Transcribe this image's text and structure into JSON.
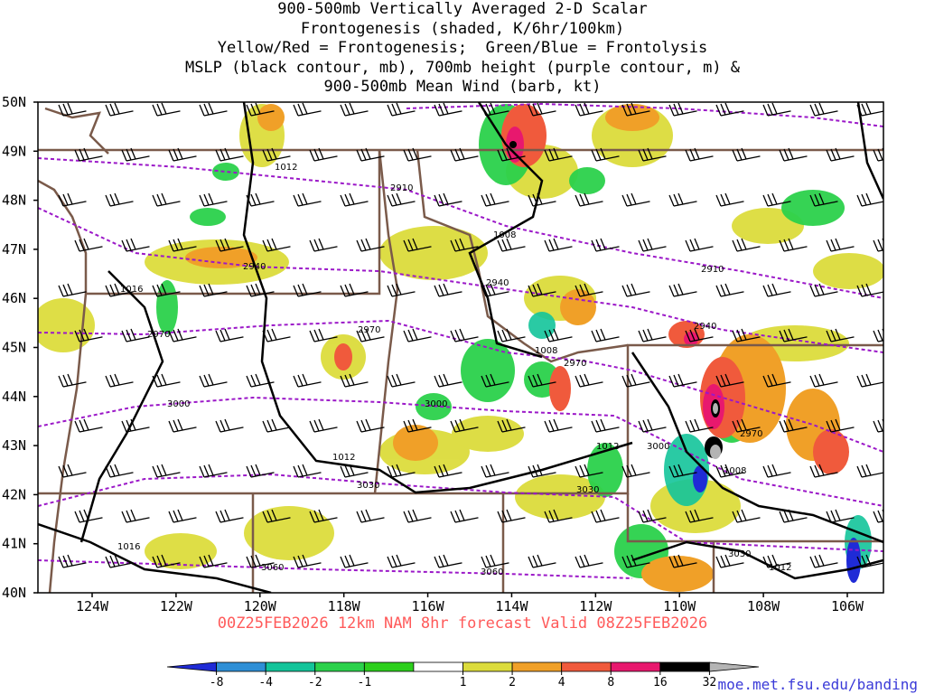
{
  "title": {
    "line1": "900-500mb Vertically Averaged 2-D Scalar",
    "line2": "Frontogenesis (shaded, K/6hr/100km)",
    "line3": "Yellow/Red = Frontogenesis;  Green/Blue = Frontolysis",
    "line4": "MSLP (black contour, mb), 700mb height (purple contour, m) &",
    "line5": "900-500mb Mean Wind (barb, kt)"
  },
  "valid": "00Z25FEB2026 12km NAM 8hr forecast Valid 08Z25FEB2026",
  "credit": "moe.met.fsu.edu/banding",
  "lat_labels": [
    "50N",
    "49N",
    "48N",
    "47N",
    "46N",
    "45N",
    "44N",
    "43N",
    "42N",
    "41N",
    "40N"
  ],
  "lon_labels": [
    "124W",
    "122W",
    "120W",
    "118W",
    "116W",
    "114W",
    "112W",
    "110W",
    "108W",
    "106W"
  ],
  "colorbar": {
    "labels": [
      "-8",
      "-4",
      "-2",
      "-1",
      "1",
      "2",
      "4",
      "8",
      "16",
      "32"
    ],
    "colors": [
      "#1f2bd6",
      "#2e8fd6",
      "#13c49a",
      "#2bd14b",
      "#2ccf1c",
      "#ffffff",
      "#dcdc3c",
      "#f0a028",
      "#f05a3c",
      "#e8186e",
      "#000000",
      "#b4b4b4"
    ]
  },
  "contour_labels": {
    "mslp": [
      "1012",
      "1016",
      "1008",
      "1008",
      "1012",
      "1012",
      "1016",
      "1012",
      "1008",
      "1012"
    ],
    "height": [
      "2910",
      "2940",
      "2940",
      "2970",
      "2970",
      "3000",
      "3000",
      "3030",
      "3030",
      "3060",
      "3060",
      "2910",
      "2940",
      "2970",
      "3000",
      "3030",
      "2970"
    ]
  }
}
